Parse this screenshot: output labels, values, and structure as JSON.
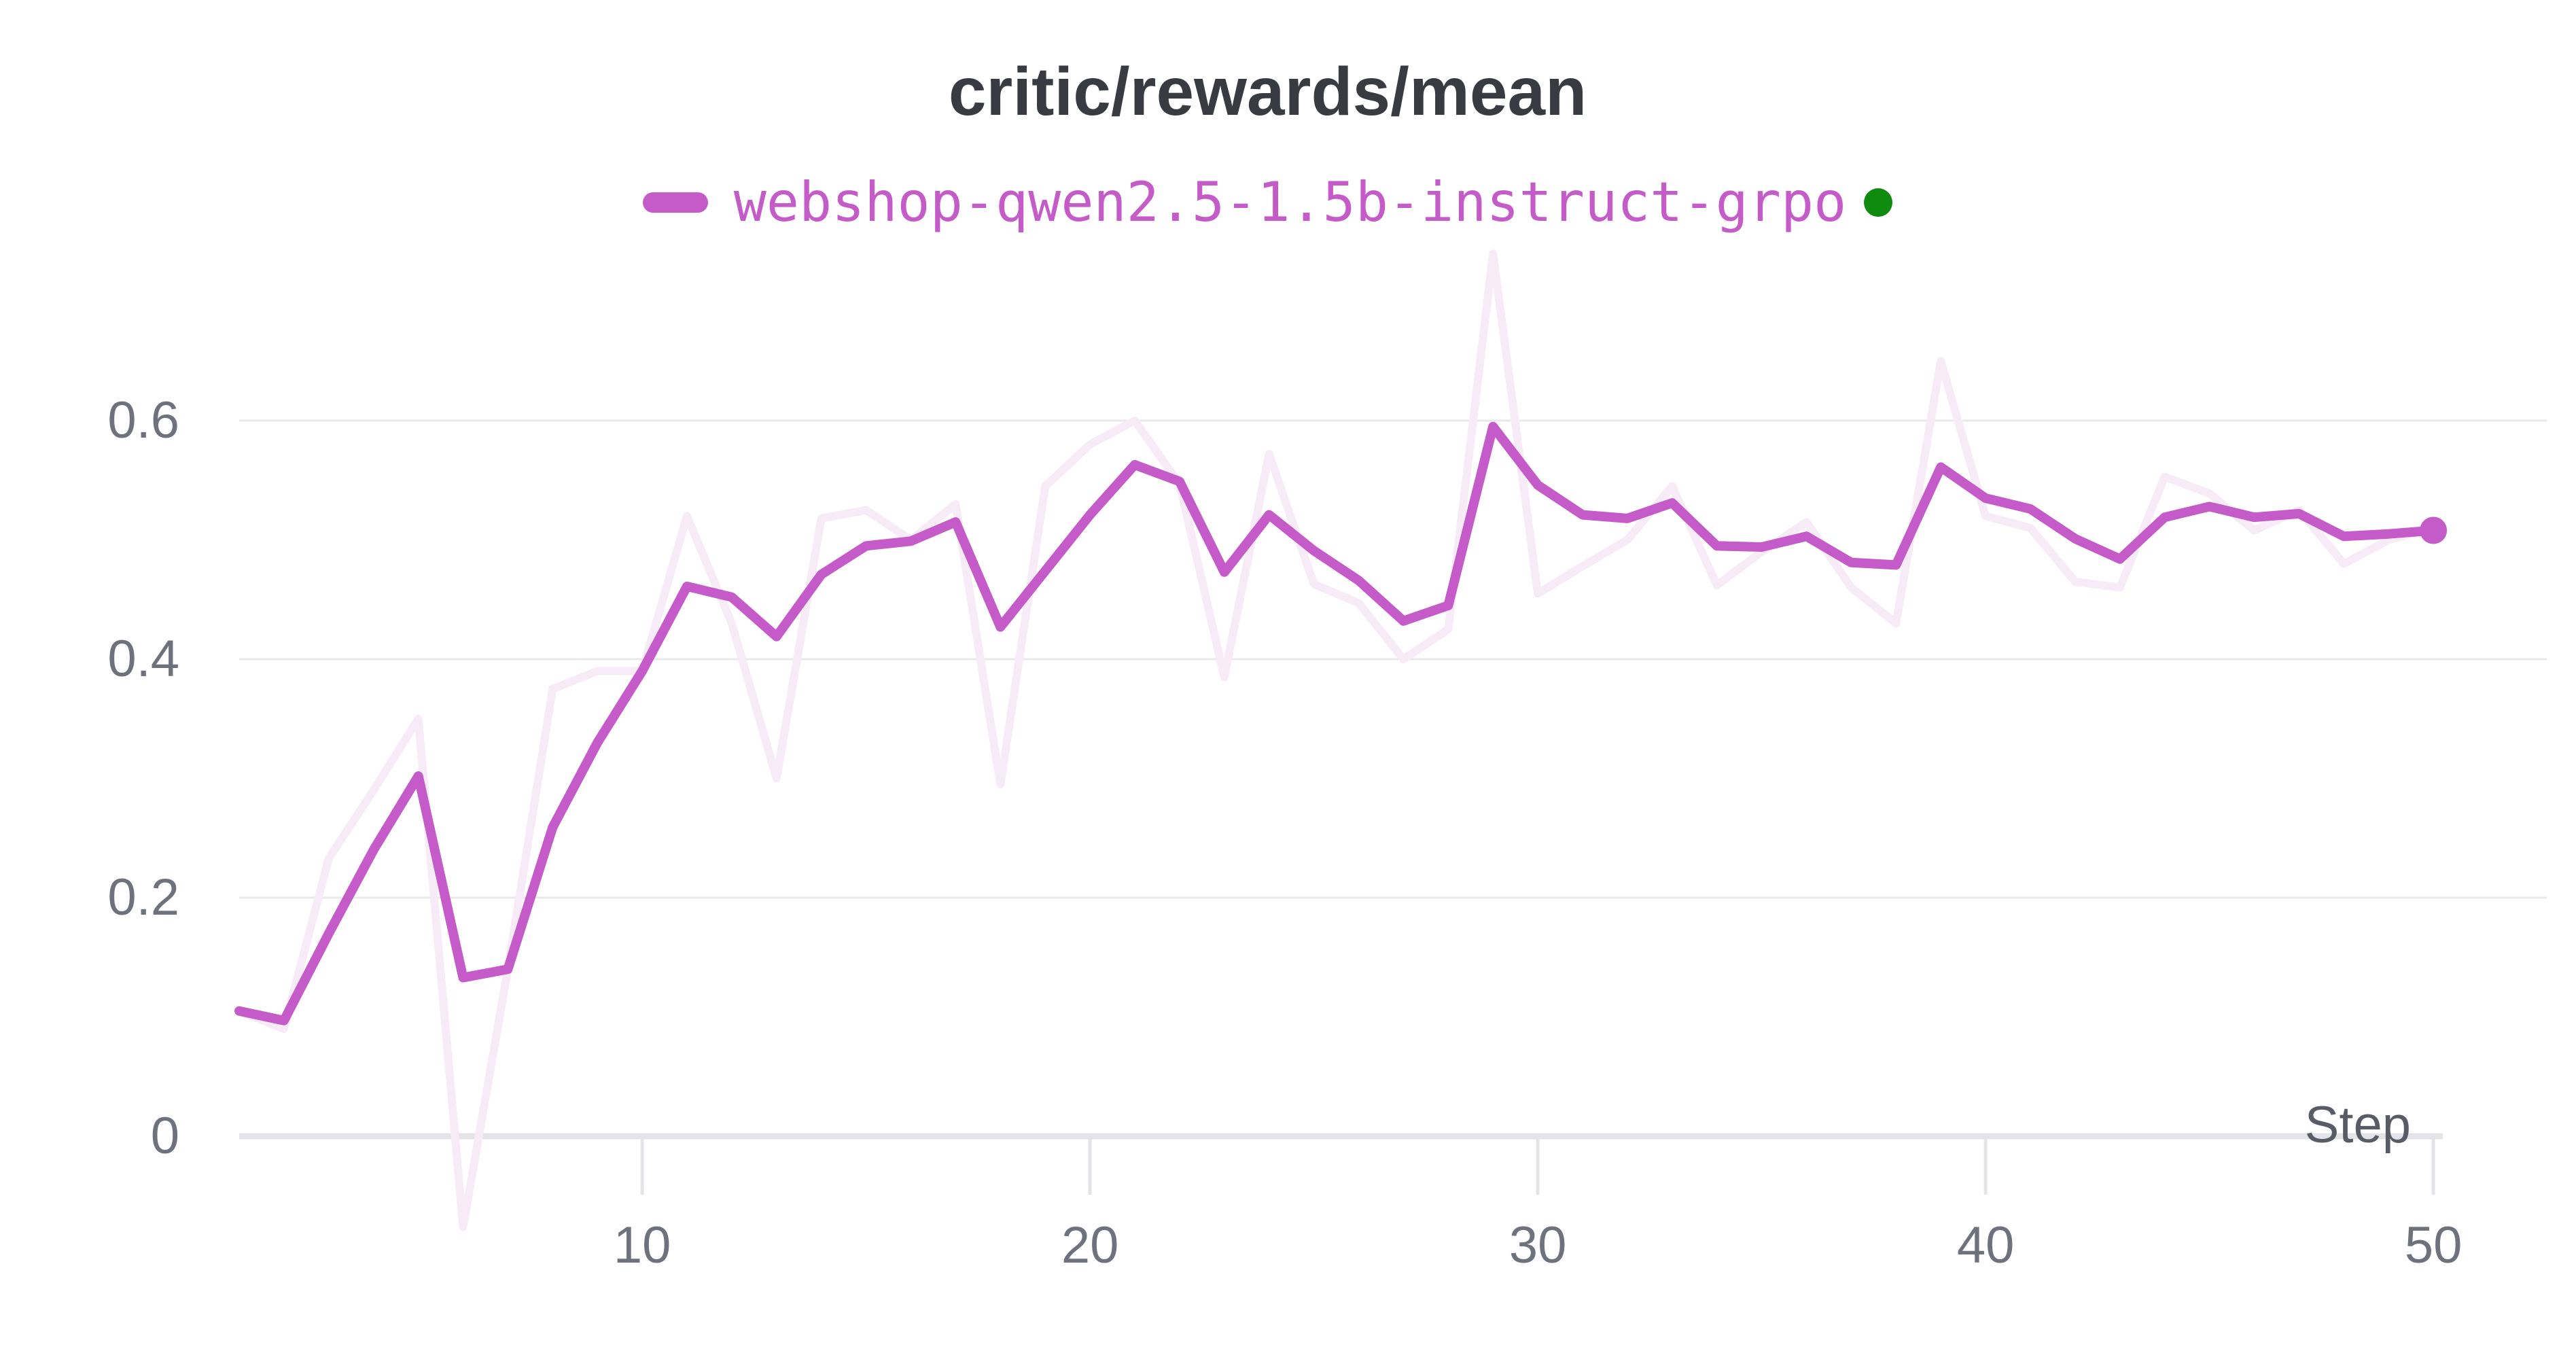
{
  "header": {
    "title": "critic/rewards/mean"
  },
  "legend": {
    "label": "webshop-qwen2.5-1.5b-instruct-grpo",
    "series_color": "#c45bc9",
    "run_status_dot_color": "#0e8b0e"
  },
  "axes": {
    "x_label": "Step",
    "x_ticks": [
      10,
      20,
      30,
      40,
      50
    ],
    "y_ticks": [
      {
        "label": "0",
        "value": 0.0
      },
      {
        "label": "0.2",
        "value": 0.2
      },
      {
        "label": "0.4",
        "value": 0.4
      },
      {
        "label": "0.6",
        "value": 0.6
      }
    ]
  },
  "chart_data": {
    "type": "line",
    "title": "critic/rewards/mean",
    "xlabel": "Step",
    "ylabel": "",
    "x_range": [
      1,
      50
    ],
    "ylim": [
      -0.08,
      0.78
    ],
    "grid": "horizontal",
    "legend_position": "top-center",
    "x": [
      1,
      2,
      3,
      4,
      5,
      6,
      7,
      8,
      9,
      10,
      11,
      12,
      13,
      14,
      15,
      16,
      17,
      18,
      19,
      20,
      21,
      22,
      23,
      24,
      25,
      26,
      27,
      28,
      29,
      30,
      31,
      32,
      33,
      34,
      35,
      36,
      37,
      38,
      39,
      40,
      41,
      42,
      43,
      44,
      45,
      46,
      47,
      48,
      49,
      50
    ],
    "series": [
      {
        "name": "webshop-qwen2.5-1.5b-instruct-grpo (smoothed)",
        "color": "#c45bc9",
        "stroke_width": 14,
        "end_marker": true,
        "values": [
          0.105,
          0.097,
          0.17,
          0.24,
          0.302,
          0.133,
          0.14,
          0.259,
          0.33,
          0.39,
          0.461,
          0.452,
          0.419,
          0.471,
          0.495,
          0.499,
          0.515,
          0.427,
          0.474,
          0.521,
          0.563,
          0.549,
          0.473,
          0.521,
          0.491,
          0.466,
          0.432,
          0.445,
          0.595,
          0.546,
          0.521,
          0.518,
          0.531,
          0.495,
          0.494,
          0.503,
          0.481,
          0.479,
          0.561,
          0.535,
          0.526,
          0.501,
          0.484,
          0.519,
          0.528,
          0.519,
          0.522,
          0.503,
          0.505,
          0.508
        ]
      },
      {
        "name": "webshop-qwen2.5-1.5b-instruct-grpo (original)",
        "color": "#f7ebf8",
        "stroke_width": 12,
        "end_marker": false,
        "values": [
          0.105,
          0.09,
          0.233,
          0.29,
          0.35,
          -0.076,
          0.14,
          0.375,
          0.39,
          0.39,
          0.52,
          0.43,
          0.3,
          0.518,
          0.525,
          0.5,
          0.53,
          0.295,
          0.545,
          0.58,
          0.6,
          0.547,
          0.385,
          0.572,
          0.463,
          0.447,
          0.4,
          0.425,
          0.74,
          0.455,
          0.478,
          0.5,
          0.545,
          0.462,
          0.49,
          0.515,
          0.46,
          0.43,
          0.65,
          0.52,
          0.51,
          0.465,
          0.46,
          0.553,
          0.539,
          0.508,
          0.525,
          0.48,
          0.5,
          0.51
        ]
      }
    ],
    "gridline_color": "#e9e9ec",
    "zero_axis_color": "#e4e4e8"
  }
}
